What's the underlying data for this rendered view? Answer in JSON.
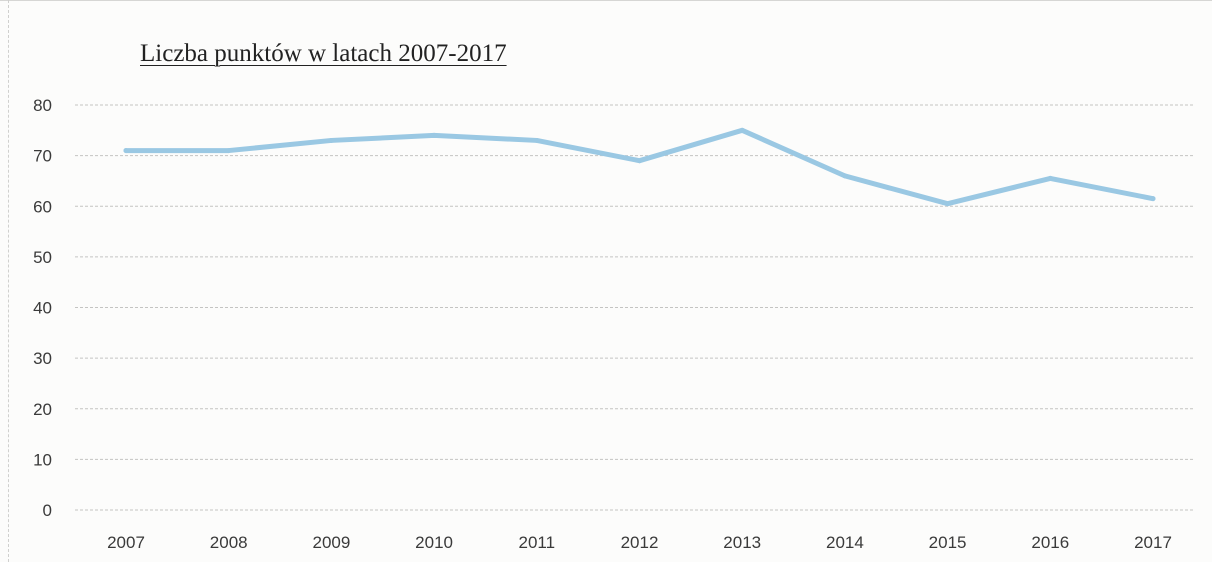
{
  "chart_data": {
    "type": "line",
    "title": "Liczba punktów  w latach 2007-2017",
    "xlabel": "",
    "ylabel": "",
    "categories": [
      "2007",
      "2008",
      "2009",
      "2010",
      "2011",
      "2012",
      "2013",
      "2014",
      "2015",
      "2016",
      "2017"
    ],
    "series": [
      {
        "values": [
          71,
          71,
          73,
          74,
          73,
          69,
          75,
          66,
          60.5,
          65.5,
          61.5
        ],
        "color": "#9ac8e3"
      }
    ],
    "ylim": [
      0,
      80
    ],
    "yticks": [
      0,
      10,
      20,
      30,
      40,
      50,
      60,
      70,
      80
    ],
    "grid": true,
    "legend": "none"
  }
}
